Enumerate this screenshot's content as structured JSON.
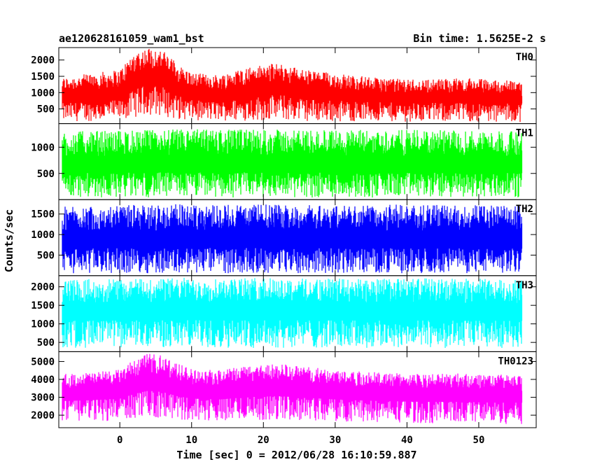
{
  "chart_data": {
    "type": "line",
    "title": "ae120628161059_wam1_bst",
    "subtitle": "Bin time: 1.5625E-2 s",
    "xlabel": "Time [sec] 0 = 2012/06/28 16:10:59.887",
    "ylabel": "Counts/sec",
    "xlim": [
      -8.5,
      58
    ],
    "x_data_range": [
      -8,
      56
    ],
    "xticks": [
      0,
      10,
      20,
      30,
      40,
      50
    ],
    "grid": false,
    "series": [
      {
        "name": "TH0",
        "color": "#ff0000",
        "ylim": [
          50,
          2380
        ],
        "yticks": [
          500,
          1000,
          1500,
          2000
        ],
        "envelope": {
          "x": [
            -8,
            -4,
            0,
            2,
            4,
            6,
            8,
            10,
            14,
            18,
            22,
            26,
            30,
            36,
            42,
            48,
            52,
            56
          ],
          "low": [
            120,
            130,
            150,
            250,
            320,
            280,
            180,
            150,
            140,
            140,
            150,
            130,
            120,
            110,
            110,
            110,
            100,
            100
          ],
          "mid": [
            750,
            800,
            850,
            1200,
            1400,
            1300,
            1000,
            850,
            800,
            950,
            1050,
            900,
            850,
            780,
            760,
            760,
            740,
            740
          ],
          "high": [
            1450,
            1600,
            1700,
            2250,
            2380,
            2300,
            1900,
            1600,
            1550,
            1800,
            1900,
            1700,
            1600,
            1450,
            1400,
            1450,
            1400,
            1350
          ]
        }
      },
      {
        "name": "TH1",
        "color": "#00ff00",
        "ylim": [
          0,
          1450
        ],
        "yticks": [
          500,
          1000
        ],
        "envelope": {
          "x": [
            -8,
            0,
            10,
            20,
            30,
            40,
            50,
            56
          ],
          "low": [
            40,
            40,
            40,
            40,
            40,
            40,
            40,
            40
          ],
          "mid": [
            560,
            570,
            580,
            575,
            570,
            570,
            565,
            560
          ],
          "high": [
            1300,
            1320,
            1350,
            1340,
            1330,
            1330,
            1320,
            1300
          ]
        }
      },
      {
        "name": "TH2",
        "color": "#0000ff",
        "ylim": [
          0,
          1850
        ],
        "yticks": [
          500,
          1000,
          1500
        ],
        "envelope": {
          "x": [
            -8,
            0,
            10,
            20,
            30,
            40,
            50,
            56
          ],
          "low": [
            60,
            60,
            60,
            60,
            60,
            60,
            60,
            60
          ],
          "mid": [
            730,
            740,
            750,
            745,
            740,
            740,
            735,
            730
          ],
          "high": [
            1700,
            1720,
            1750,
            1740,
            1730,
            1730,
            1720,
            1700
          ]
        }
      },
      {
        "name": "TH3",
        "color": "#00ffff",
        "ylim": [
          250,
          2300
        ],
        "yticks": [
          500,
          1000,
          1500,
          2000
        ],
        "envelope": {
          "x": [
            -8,
            0,
            10,
            20,
            30,
            40,
            50,
            56
          ],
          "low": [
            350,
            350,
            350,
            350,
            350,
            350,
            350,
            350
          ],
          "mid": [
            1200,
            1210,
            1220,
            1215,
            1210,
            1210,
            1205,
            1200
          ],
          "high": [
            2200,
            2220,
            2250,
            2240,
            2230,
            2230,
            2220,
            2200
          ]
        }
      },
      {
        "name": "TH0123",
        "color": "#ff00ff",
        "ylim": [
          1300,
          5550
        ],
        "yticks": [
          2000,
          3000,
          4000,
          5000
        ],
        "envelope": {
          "x": [
            -8,
            -4,
            0,
            2,
            4,
            6,
            8,
            10,
            14,
            18,
            22,
            26,
            30,
            36,
            42,
            48,
            52,
            56
          ],
          "low": [
            1600,
            1650,
            1700,
            1800,
            1900,
            1850,
            1750,
            1700,
            1650,
            1700,
            1750,
            1700,
            1650,
            1600,
            1550,
            1550,
            1500,
            1500
          ],
          "mid": [
            3100,
            3150,
            3250,
            3550,
            3750,
            3650,
            3400,
            3250,
            3200,
            3350,
            3400,
            3300,
            3200,
            3100,
            3050,
            3050,
            3000,
            3000
          ],
          "high": [
            4300,
            4400,
            4550,
            5100,
            5450,
            5350,
            4900,
            4600,
            4500,
            4800,
            4900,
            4700,
            4550,
            4400,
            4300,
            4350,
            4300,
            4200
          ]
        }
      }
    ]
  }
}
